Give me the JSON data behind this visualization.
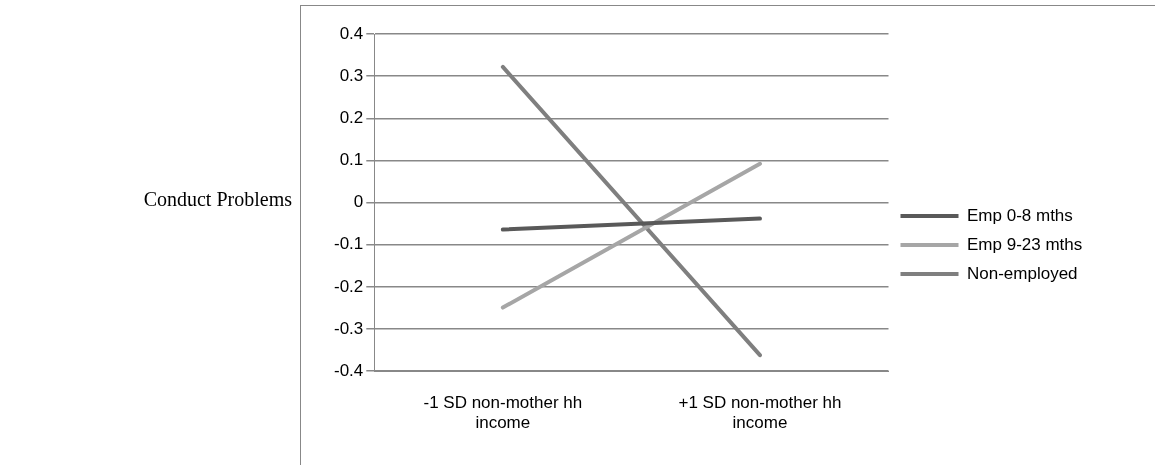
{
  "chart_data": {
    "type": "line",
    "ylabel": "Conduct Problems",
    "categories": [
      [
        "-1 SD non-mother hh",
        "income"
      ],
      [
        "+1 SD non-mother hh",
        "income"
      ]
    ],
    "series": [
      {
        "name": "Emp 0-8 mths",
        "color": "#595959",
        "values": [
          -0.064,
          -0.038
        ]
      },
      {
        "name": "Emp 9-23 mths",
        "color": "#a6a6a6",
        "values": [
          -0.249,
          0.092
        ]
      },
      {
        "name": "Non-employed",
        "color": "#7f7f7f",
        "values": [
          0.322,
          -0.362
        ]
      }
    ],
    "ylim": [
      -0.4,
      0.4
    ],
    "yticks": [
      -0.4,
      -0.3,
      -0.2,
      -0.1,
      0,
      0.1,
      0.2,
      0.3,
      0.4
    ],
    "grid": "y",
    "legend": "right",
    "marker": "none",
    "line_style": "solid"
  }
}
